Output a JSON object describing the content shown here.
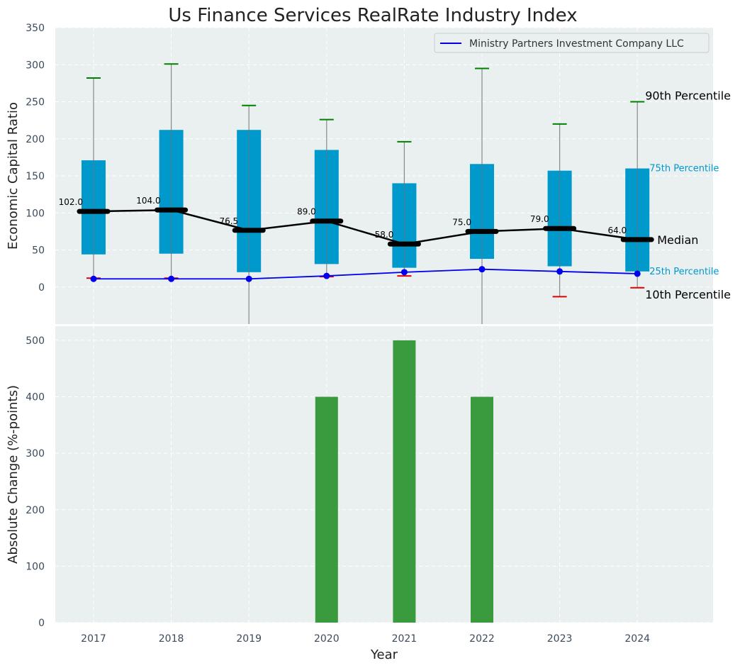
{
  "chart_data": [
    {
      "type": "box",
      "title": "Us Finance Services RealRate Industry Index",
      "ylabel": "Economic Capital Ratio",
      "ylim": [
        -50,
        350
      ],
      "yticks": [
        0,
        50,
        100,
        150,
        200,
        250,
        300,
        350
      ],
      "categories": [
        "2017",
        "2018",
        "2019",
        "2020",
        "2021",
        "2022",
        "2023",
        "2024"
      ],
      "p10": [
        12,
        12,
        null,
        14,
        15,
        null,
        -13,
        -1
      ],
      "p25": [
        44,
        45,
        20,
        31,
        26,
        38,
        28,
        21
      ],
      "median": [
        102.0,
        104.0,
        76.5,
        89.0,
        58.0,
        75.0,
        79.0,
        64.0
      ],
      "median_labels": [
        "102.0",
        "104.0",
        "76.5",
        "89.0",
        "58.0",
        "75.0",
        "79.0",
        "64.0"
      ],
      "p75": [
        171,
        212,
        212,
        185,
        140,
        166,
        157,
        160
      ],
      "p90": [
        282,
        301,
        245,
        226,
        196,
        295,
        220,
        250
      ],
      "whisker_low": [
        12,
        12,
        -60,
        14,
        15,
        -60,
        -13,
        -1
      ],
      "series": [
        {
          "name": "Ministry Partners Investment Company LLC",
          "values": [
            11,
            11,
            11,
            15,
            20,
            24,
            21,
            18
          ]
        }
      ],
      "percentile_labels": {
        "p90": "90th Percentile",
        "p75": "75th Percentile",
        "median": "Median",
        "p25": "25th Percentile",
        "p10": "10th Percentile"
      },
      "legend": "top-right",
      "grid": true
    },
    {
      "type": "bar",
      "ylabel": "Absolute Change (%-points)",
      "xlabel": "Year",
      "ylim": [
        0,
        525
      ],
      "yticks": [
        0,
        100,
        200,
        300,
        400,
        500
      ],
      "categories": [
        "2017",
        "2018",
        "2019",
        "2020",
        "2021",
        "2022",
        "2023",
        "2024"
      ],
      "values": [
        0,
        0,
        0,
        400,
        500,
        400,
        0,
        0
      ],
      "grid": true
    }
  ],
  "colors": {
    "plot_bg": "#eaeff0",
    "box": "#0099cc",
    "median_line": "#000000",
    "company_line": "#0000ee",
    "p90_cap": "#008000",
    "p10_cap": "#e00000",
    "bar": "#3a9a3e",
    "whisker": "#888888"
  }
}
